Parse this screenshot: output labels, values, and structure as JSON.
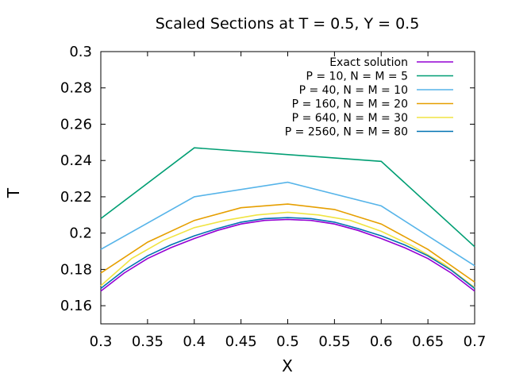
{
  "chart_data": {
    "type": "line",
    "title": "Scaled Sections at T  = 0.5, Y = 0.5",
    "xlabel": "X",
    "ylabel": "T",
    "xlim": [
      0.3,
      0.7
    ],
    "ylim": [
      0.15,
      0.3
    ],
    "xticks": [
      0.3,
      0.35,
      0.4,
      0.45,
      0.5,
      0.55,
      0.6,
      0.65,
      0.7
    ],
    "yticks": [
      0.16,
      0.18,
      0.2,
      0.22,
      0.24,
      0.26,
      0.28,
      0.3
    ],
    "xtick_labels": [
      "0.3",
      "0.35",
      "0.4",
      "0.45",
      "0.5",
      "0.55",
      "0.6",
      "0.65",
      "0.7"
    ],
    "ytick_labels": [
      "0.16",
      "0.18",
      "0.2",
      "0.22",
      "0.24",
      "0.26",
      "0.28",
      "0.3"
    ],
    "grid": false,
    "legend_position": "top-right",
    "series": [
      {
        "name": "Exact solution",
        "color": "#9400d3",
        "x": [
          0.3,
          0.325,
          0.35,
          0.375,
          0.4,
          0.425,
          0.45,
          0.475,
          0.5,
          0.525,
          0.55,
          0.575,
          0.6,
          0.625,
          0.65,
          0.675,
          0.7
        ],
        "y": [
          0.168,
          0.178,
          0.186,
          0.192,
          0.197,
          0.2015,
          0.205,
          0.207,
          0.2075,
          0.207,
          0.205,
          0.2015,
          0.197,
          0.192,
          0.186,
          0.178,
          0.168
        ]
      },
      {
        "name": "P = 10, N = M = 5",
        "color": "#009e73",
        "x": [
          0.3,
          0.4,
          0.6,
          0.7
        ],
        "y": [
          0.208,
          0.247,
          0.2395,
          0.1925
        ]
      },
      {
        "name": "P = 40, N = M = 10",
        "color": "#56b4e9",
        "x": [
          0.3,
          0.4,
          0.5,
          0.6,
          0.7
        ],
        "y": [
          0.191,
          0.22,
          0.228,
          0.215,
          0.182
        ]
      },
      {
        "name": "P = 160, N = M = 20",
        "color": "#e69f00",
        "x": [
          0.3,
          0.35,
          0.4,
          0.45,
          0.5,
          0.55,
          0.6,
          0.65,
          0.7
        ],
        "y": [
          0.178,
          0.195,
          0.207,
          0.214,
          0.216,
          0.213,
          0.205,
          0.191,
          0.173
        ]
      },
      {
        "name": "P = 640, N = M = 30",
        "color": "#f0e442",
        "x": [
          0.3,
          0.333,
          0.367,
          0.4,
          0.433,
          0.467,
          0.5,
          0.533,
          0.567,
          0.6,
          0.633,
          0.667,
          0.7
        ],
        "y": [
          0.171,
          0.186,
          0.196,
          0.203,
          0.207,
          0.21,
          0.2115,
          0.21,
          0.207,
          0.201,
          0.193,
          0.183,
          0.17
        ]
      },
      {
        "name": "P = 2560, N = M = 80",
        "color": "#0072b2",
        "x": [
          0.3,
          0.325,
          0.35,
          0.375,
          0.4,
          0.425,
          0.45,
          0.475,
          0.5,
          0.525,
          0.55,
          0.575,
          0.6,
          0.625,
          0.65,
          0.675,
          0.7
        ],
        "y": [
          0.1695,
          0.1795,
          0.1875,
          0.1935,
          0.1985,
          0.2025,
          0.206,
          0.208,
          0.2085,
          0.208,
          0.206,
          0.2025,
          0.1985,
          0.1935,
          0.1875,
          0.1795,
          0.1695
        ]
      }
    ]
  }
}
